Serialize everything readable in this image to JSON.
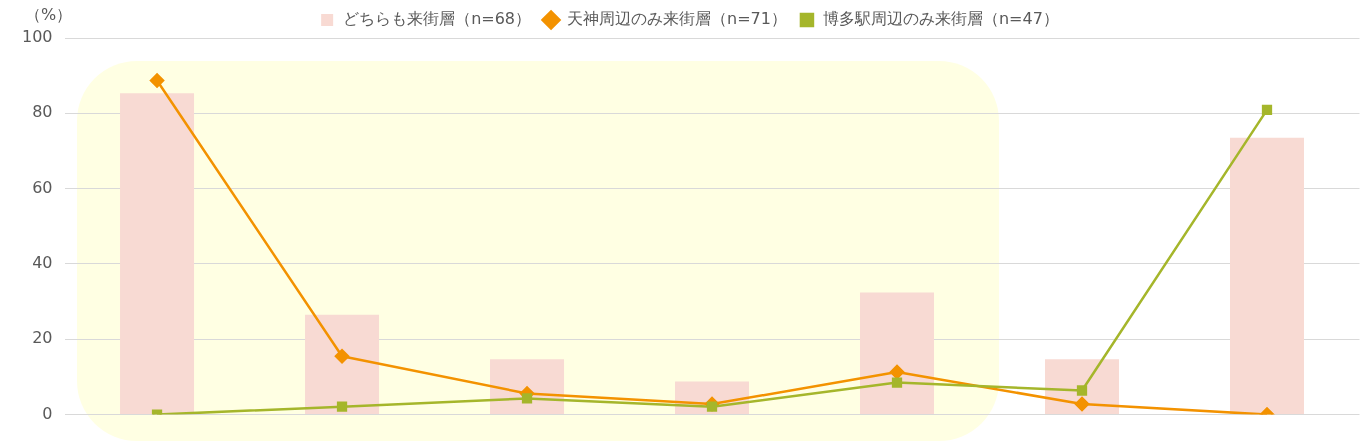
{
  "chart_data": {
    "type": "bar",
    "ylabel": "（%）",
    "categories": [
      null,
      null,
      null,
      null,
      null,
      null,
      null
    ],
    "series": [
      {
        "name": "どちらも来街層（n=68）",
        "color": "#f8dad3",
        "values": [
          85.3,
          26.5,
          14.7,
          8.8,
          32.4,
          14.7,
          73.5
        ]
      },
      {
        "name": "天神周辺のみ来街層（n=71）",
        "type": "line",
        "color": "#f39200",
        "marker": "diamond",
        "values": [
          88.7,
          15.5,
          5.6,
          2.8,
          11.3,
          2.8,
          0
        ]
      },
      {
        "name": "博多駅周辺のみ来街層（n=47）",
        "type": "line",
        "color": "#a5b62b",
        "marker": "square",
        "values": [
          0,
          2.1,
          4.3,
          2.1,
          8.5,
          6.4,
          80.9
        ]
      }
    ],
    "ylim": [
      0,
      100
    ],
    "yticks": [
      0,
      20,
      40,
      60,
      80,
      100
    ],
    "grid": "y",
    "legend": "top"
  }
}
